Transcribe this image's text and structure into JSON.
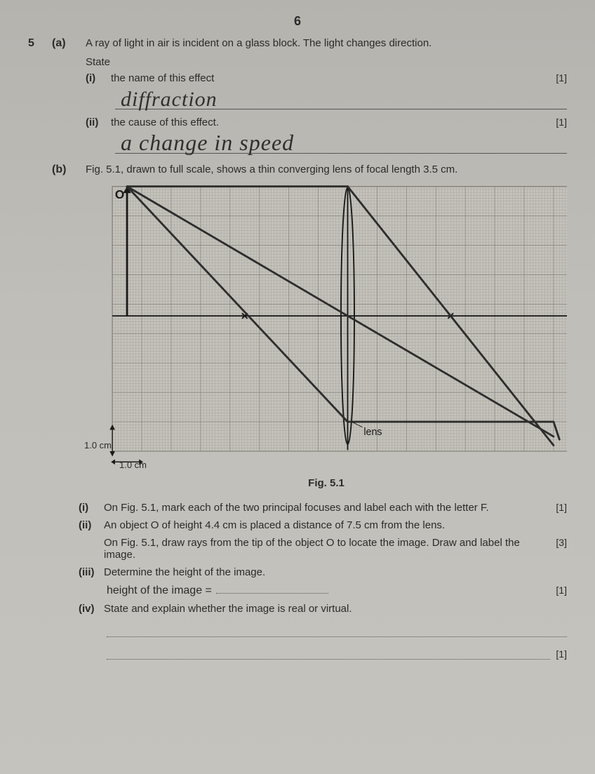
{
  "page_number": "6",
  "question_number": "5",
  "part_a": {
    "label": "(a)",
    "stem": "A ray of light in air is incident on a glass block. The light changes direction.",
    "state": "State",
    "i": {
      "label": "(i)",
      "text": "the name of this effect",
      "mark": "[1]",
      "answer_handwritten": "diffraction"
    },
    "ii": {
      "label": "(ii)",
      "text": "the cause of this effect.",
      "mark": "[1]",
      "answer_handwritten": "a change in speed"
    }
  },
  "part_b": {
    "label": "(b)",
    "stem": "Fig. 5.1, drawn to full scale, shows a thin converging lens of focal length 3.5 cm.",
    "figure": {
      "name": "lens-ray-diagram",
      "caption": "Fig. 5.1",
      "lens_label": "lens",
      "yaxis_label": "1.0 cm",
      "xaxis_label": "1.0 cm",
      "object_label": "O",
      "grid": {
        "width_cm": 15.5,
        "height_cm": 9.0,
        "fine_div_per_cm": 10,
        "line_color": "#8a8880",
        "major_line_color": "#5d5b54",
        "background": "#c4c2bb"
      },
      "axis_y_cm": 4.4,
      "lens_x_cm": 8.0,
      "lens_half_height_cm": 4.6,
      "object_tip": {
        "x_cm": 0.5,
        "y_cm": 0.0
      },
      "focal_points": [
        {
          "x_cm": 4.5,
          "y_cm": 4.4
        },
        {
          "x_cm": 11.5,
          "y_cm": 4.4
        }
      ],
      "ray_color": "#2d2d2d",
      "ray_width": 3,
      "rays": [
        {
          "from": [
            0.5,
            0.0
          ],
          "to": [
            8.0,
            0.0
          ]
        },
        {
          "from": [
            8.0,
            0.0
          ],
          "to": [
            15.0,
            8.8
          ]
        },
        {
          "from": [
            0.5,
            0.0
          ],
          "to": [
            8.0,
            4.4
          ]
        },
        {
          "from": [
            8.0,
            4.4
          ],
          "to": [
            15.0,
            8.5
          ]
        },
        {
          "from": [
            0.5,
            0.0
          ],
          "to": [
            8.0,
            8.0
          ]
        },
        {
          "from": [
            8.0,
            8.0
          ],
          "to": [
            15.0,
            8.0
          ]
        },
        {
          "from": [
            15.0,
            8.0
          ],
          "to": [
            15.2,
            8.6
          ]
        }
      ]
    },
    "i": {
      "label": "(i)",
      "text": "On Fig. 5.1, mark each of the two principal focuses and label each with the letter F.",
      "mark": "[1]"
    },
    "ii": {
      "label": "(ii)",
      "text1": "An object O of height 4.4 cm is placed a distance of 7.5 cm from the lens.",
      "text2": "On Fig. 5.1, draw rays from the tip of the object O to locate the image. Draw and label the image.",
      "mark": "[3]"
    },
    "iii": {
      "label": "(iii)",
      "text": "Determine the height of the image.",
      "answer_label": "height of the image =",
      "mark": "[1]"
    },
    "iv": {
      "label": "(iv)",
      "text": "State and explain whether the image is real or virtual.",
      "mark": "[1]"
    }
  }
}
